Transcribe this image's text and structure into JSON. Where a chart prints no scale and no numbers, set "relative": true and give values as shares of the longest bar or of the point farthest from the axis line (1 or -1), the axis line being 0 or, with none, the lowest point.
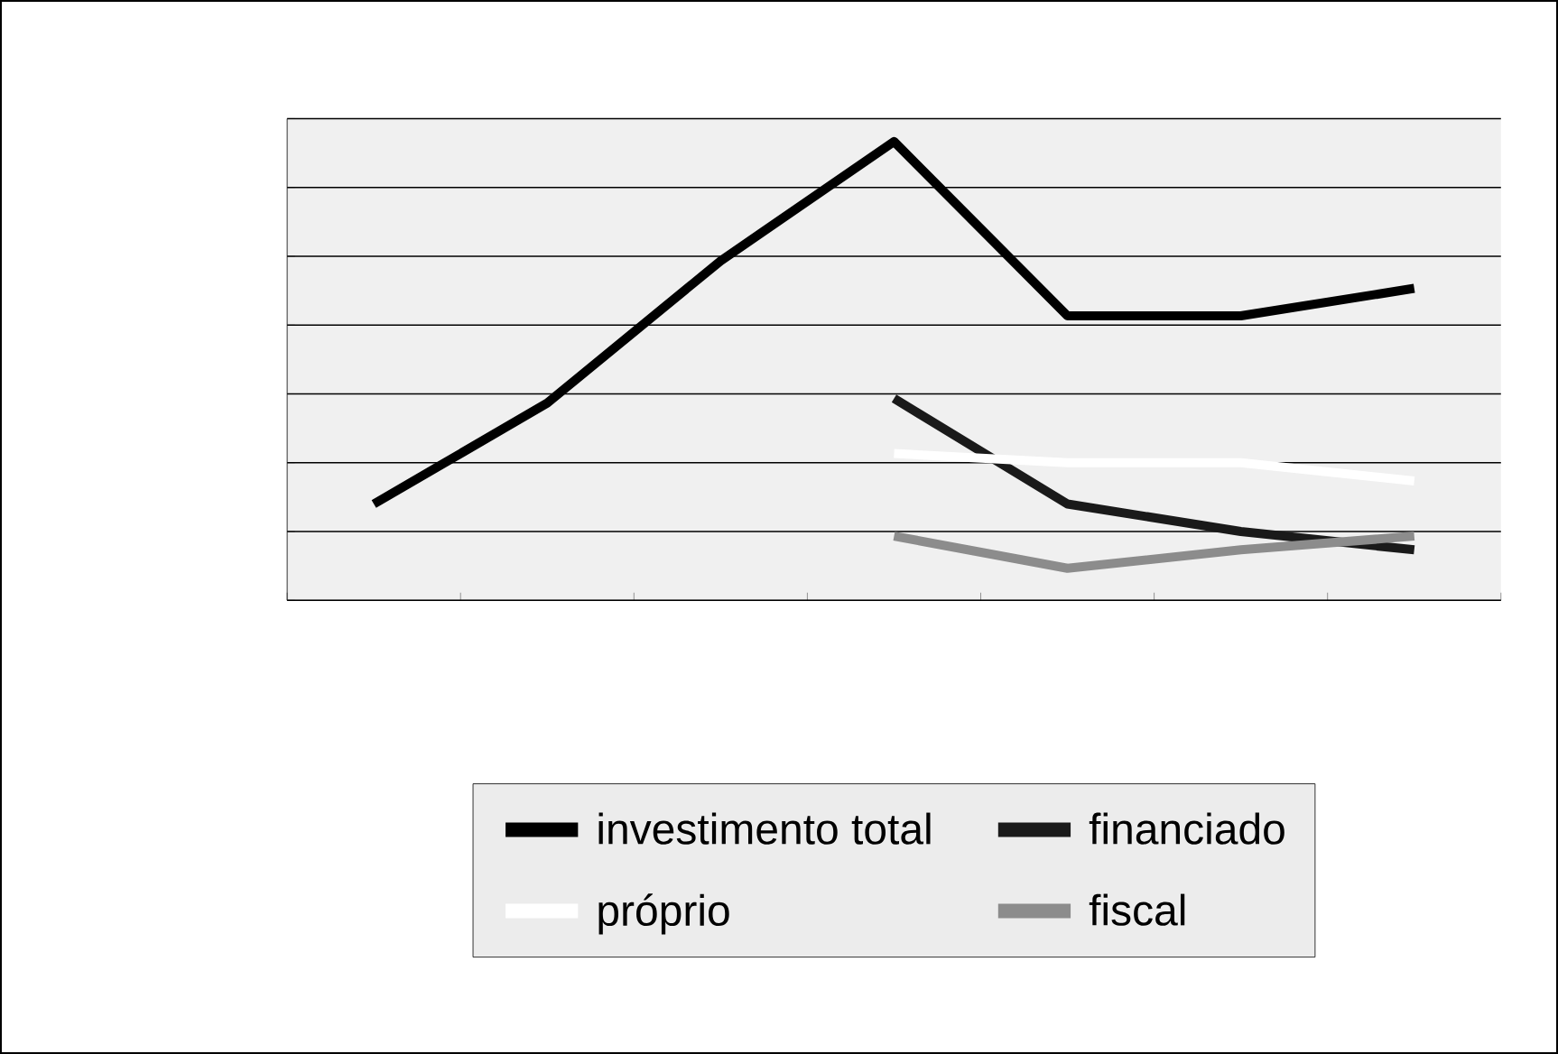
{
  "chart_data": {
    "type": "line",
    "relative": true,
    "categories": [
      null,
      null,
      null,
      null,
      null,
      null,
      null
    ],
    "series": [
      {
        "name": "investimento total",
        "color": "#000000",
        "values": [
          0.21,
          0.43,
          0.74,
          1,
          0.62,
          0.62,
          0.68
        ]
      },
      {
        "name": "financiado",
        "color": "#1a1a1a",
        "values": [
          null,
          null,
          null,
          0.44,
          0.21,
          0.15,
          0.11
        ]
      },
      {
        "name": "próprio",
        "color": "#ffffff",
        "values": [
          null,
          null,
          null,
          0.32,
          0.3,
          0.3,
          0.26
        ]
      },
      {
        "name": "fiscal",
        "color": "#8c8c8c",
        "values": [
          null,
          null,
          null,
          0.14,
          0.07,
          0.11,
          0.14
        ]
      }
    ],
    "grid": "y",
    "legend": "bottom",
    "marker": "none",
    "line_style": "solid",
    "tick_labels": false
  }
}
